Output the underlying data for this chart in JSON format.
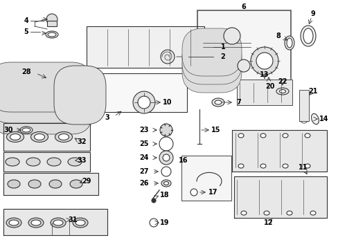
{
  "bg_color": "#ffffff",
  "line_color": "#333333",
  "label_color": "#000000",
  "fig_width": 4.89,
  "fig_height": 3.6,
  "dpi": 100
}
